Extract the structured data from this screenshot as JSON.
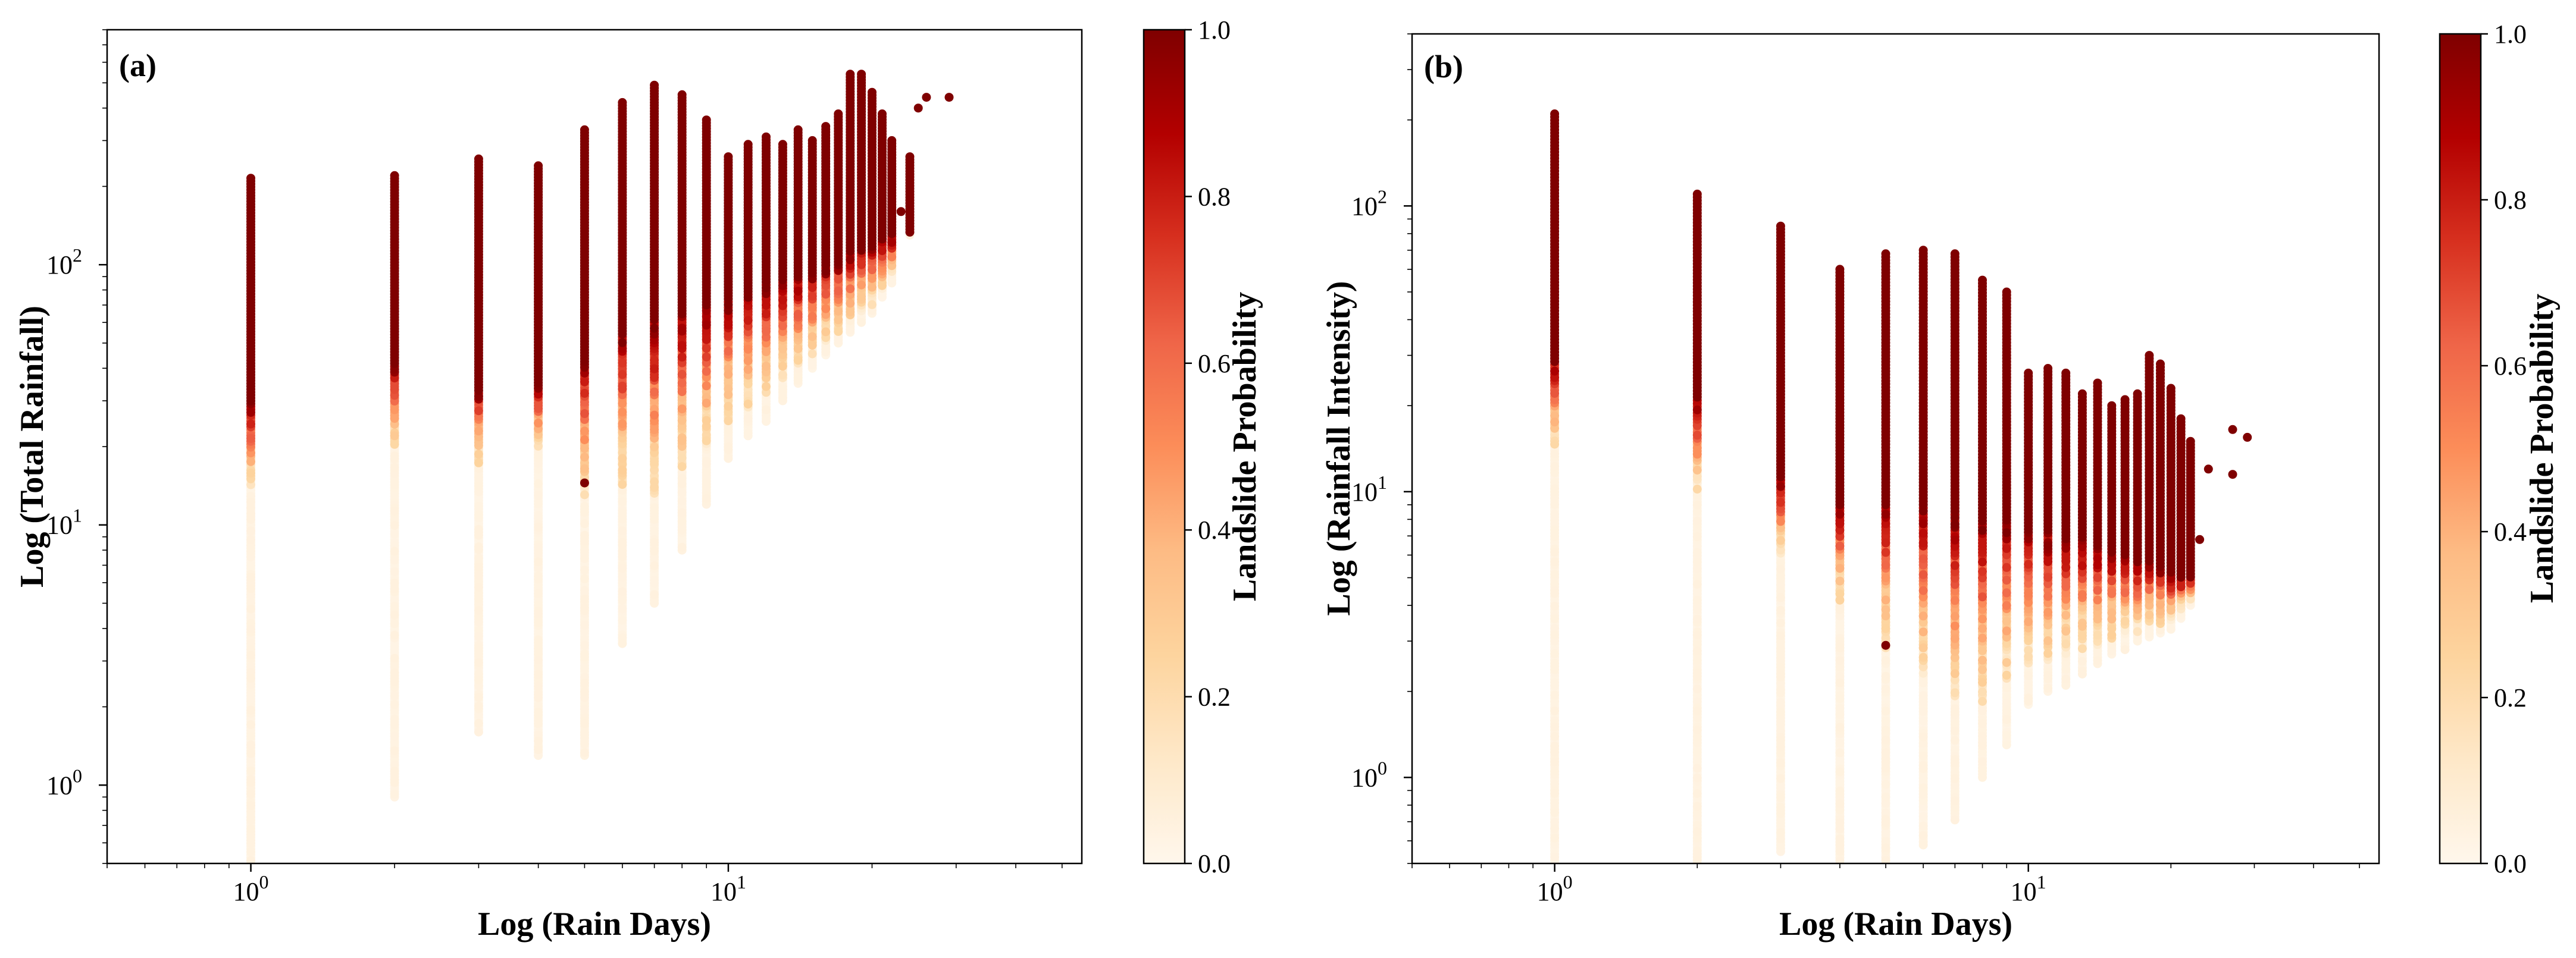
{
  "chart_data": [
    {
      "panel_label": "(a)",
      "type": "scatter",
      "xscale": "log",
      "yscale": "log",
      "xlabel": "Log (Rain Days)",
      "ylabel": "Log (Total Rainfall)",
      "xlim": [
        0.5,
        55
      ],
      "ylim": [
        0.5,
        800
      ],
      "x_ticks": [
        {
          "value": 1,
          "base": "10",
          "exp": "0"
        },
        {
          "value": 10,
          "base": "10",
          "exp": "1"
        }
      ],
      "y_ticks": [
        {
          "value": 1,
          "base": "10",
          "exp": "0"
        },
        {
          "value": 10,
          "base": "10",
          "exp": "1"
        },
        {
          "value": 100,
          "base": "10",
          "exp": "2"
        }
      ],
      "colorbar": {
        "label": "Landslide Probability",
        "range": [
          0.0,
          1.0
        ],
        "ticks": [
          "0.0",
          "0.2",
          "0.4",
          "0.6",
          "0.8",
          "1.0"
        ],
        "colormap": "OrRd"
      },
      "columns": [
        {
          "x": 1,
          "y_min": 0.5,
          "y_max": 215,
          "p_start": 14,
          "p_high": 30
        },
        {
          "x": 2,
          "y_min": 0.9,
          "y_max": 220,
          "p_start": 20,
          "p_high": 42
        },
        {
          "x": 3,
          "y_min": 1.6,
          "y_max": 255,
          "p_start": 17,
          "p_high": 33
        },
        {
          "x": 4,
          "y_min": 1.3,
          "y_max": 240,
          "p_start": 20,
          "p_high": 35
        },
        {
          "x": 5,
          "y_min": 1.3,
          "y_max": 330,
          "p_start": 13,
          "p_high": 45
        },
        {
          "x": 6,
          "y_min": 3.5,
          "y_max": 420,
          "p_start": 14,
          "p_high": 55
        },
        {
          "x": 7,
          "y_min": 5,
          "y_max": 490,
          "p_start": 13,
          "p_high": 60
        },
        {
          "x": 8,
          "y_min": 8,
          "y_max": 450,
          "p_start": 16,
          "p_high": 65
        },
        {
          "x": 9,
          "y_min": 12,
          "y_max": 360,
          "p_start": 20,
          "p_high": 70
        },
        {
          "x": 10,
          "y_min": 18,
          "y_max": 260,
          "p_start": 25,
          "p_high": 75
        },
        {
          "x": 11,
          "y_min": 22,
          "y_max": 290,
          "p_start": 28,
          "p_high": 80
        },
        {
          "x": 12,
          "y_min": 25,
          "y_max": 310,
          "p_start": 32,
          "p_high": 85
        },
        {
          "x": 13,
          "y_min": 30,
          "y_max": 290,
          "p_start": 36,
          "p_high": 88
        },
        {
          "x": 14,
          "y_min": 35,
          "y_max": 330,
          "p_start": 40,
          "p_high": 90
        },
        {
          "x": 15,
          "y_min": 40,
          "y_max": 300,
          "p_start": 45,
          "p_high": 95
        },
        {
          "x": 16,
          "y_min": 45,
          "y_max": 340,
          "p_start": 50,
          "p_high": 100
        },
        {
          "x": 17,
          "y_min": 50,
          "y_max": 380,
          "p_start": 55,
          "p_high": 105
        },
        {
          "x": 18,
          "y_min": 55,
          "y_max": 540,
          "p_start": 60,
          "p_high": 110
        },
        {
          "x": 19,
          "y_min": 60,
          "y_max": 540,
          "p_start": 65,
          "p_high": 115
        },
        {
          "x": 20,
          "y_min": 65,
          "y_max": 460,
          "p_start": 70,
          "p_high": 120
        },
        {
          "x": 21,
          "y_min": 75,
          "y_max": 380,
          "p_start": 80,
          "p_high": 125
        },
        {
          "x": 22,
          "y_min": 85,
          "y_max": 300,
          "p_start": 90,
          "p_high": 130
        },
        {
          "x": 24,
          "y_min": 130,
          "y_max": 260,
          "p_start": 130,
          "p_high": 130
        }
      ],
      "extra_points": [
        {
          "x": 5,
          "y": 14.5,
          "p": 1.0
        },
        {
          "x": 26,
          "y": 440,
          "p": 1.0
        },
        {
          "x": 29,
          "y": 440,
          "p": 1.0
        },
        {
          "x": 25,
          "y": 400,
          "p": 1.0
        },
        {
          "x": 23,
          "y": 160,
          "p": 1.0
        }
      ]
    },
    {
      "panel_label": "(b)",
      "type": "scatter",
      "xscale": "log",
      "yscale": "log",
      "xlabel": "Log (Rain Days)",
      "ylabel": "Log (Rainfall Intensity)",
      "xlim": [
        0.5,
        55
      ],
      "ylim": [
        0.5,
        400
      ],
      "x_ticks": [
        {
          "value": 1,
          "base": "10",
          "exp": "0"
        },
        {
          "value": 10,
          "base": "10",
          "exp": "1"
        }
      ],
      "y_ticks": [
        {
          "value": 1,
          "base": "10",
          "exp": "0"
        },
        {
          "value": 10,
          "base": "10",
          "exp": "1"
        },
        {
          "value": 100,
          "base": "10",
          "exp": "2"
        }
      ],
      "colorbar": {
        "label": "Landslide Probability",
        "range": [
          0.0,
          1.0
        ],
        "ticks": [
          "0.0",
          "0.2",
          "0.4",
          "0.6",
          "0.8",
          "1.0"
        ],
        "colormap": "OrRd"
      },
      "columns": [
        {
          "x": 1,
          "y_min": 0.5,
          "y_max": 210,
          "p_start": 14,
          "p_high": 30
        },
        {
          "x": 2,
          "y_min": 0.5,
          "y_max": 110,
          "p_start": 10,
          "p_high": 21
        },
        {
          "x": 3,
          "y_min": 0.55,
          "y_max": 85,
          "p_start": 6,
          "p_high": 11
        },
        {
          "x": 4,
          "y_min": 0.33,
          "y_max": 60,
          "p_start": 4,
          "p_high": 9
        },
        {
          "x": 5,
          "y_min": 0.27,
          "y_max": 68,
          "p_start": 2.8,
          "p_high": 9
        },
        {
          "x": 6,
          "y_min": 0.58,
          "y_max": 70,
          "p_start": 2.3,
          "p_high": 9
        },
        {
          "x": 7,
          "y_min": 0.71,
          "y_max": 68,
          "p_start": 1.9,
          "p_high": 8.5
        },
        {
          "x": 8,
          "y_min": 1.0,
          "y_max": 55,
          "p_start": 1.8,
          "p_high": 8
        },
        {
          "x": 9,
          "y_min": 1.3,
          "y_max": 50,
          "p_start": 2.2,
          "p_high": 7.8
        },
        {
          "x": 10,
          "y_min": 1.8,
          "y_max": 26,
          "p_start": 2.5,
          "p_high": 7.5
        },
        {
          "x": 11,
          "y_min": 2.0,
          "y_max": 27,
          "p_start": 2.5,
          "p_high": 7.3
        },
        {
          "x": 12,
          "y_min": 2.1,
          "y_max": 26,
          "p_start": 2.7,
          "p_high": 7
        },
        {
          "x": 13,
          "y_min": 2.3,
          "y_max": 22,
          "p_start": 2.8,
          "p_high": 6.8
        },
        {
          "x": 14,
          "y_min": 2.5,
          "y_max": 24,
          "p_start": 2.9,
          "p_high": 6.5
        },
        {
          "x": 15,
          "y_min": 2.7,
          "y_max": 20,
          "p_start": 3.0,
          "p_high": 6.3
        },
        {
          "x": 16,
          "y_min": 2.8,
          "y_max": 21,
          "p_start": 3.2,
          "p_high": 6
        },
        {
          "x": 17,
          "y_min": 3.0,
          "y_max": 22,
          "p_start": 3.2,
          "p_high": 5.8
        },
        {
          "x": 18,
          "y_min": 3.1,
          "y_max": 30,
          "p_start": 3.3,
          "p_high": 5.8
        },
        {
          "x": 19,
          "y_min": 3.2,
          "y_max": 28,
          "p_start": 3.4,
          "p_high": 5.5
        },
        {
          "x": 20,
          "y_min": 3.3,
          "y_max": 23,
          "p_start": 3.5,
          "p_high": 5.2
        },
        {
          "x": 21,
          "y_min": 3.6,
          "y_max": 18,
          "p_start": 3.8,
          "p_high": 5.0
        },
        {
          "x": 22,
          "y_min": 4.0,
          "y_max": 15,
          "p_start": 4.2,
          "p_high": 5.0
        }
      ],
      "extra_points": [
        {
          "x": 5,
          "y": 2.9,
          "p": 1.0
        },
        {
          "x": 27,
          "y": 16.5,
          "p": 1.0
        },
        {
          "x": 29,
          "y": 15.5,
          "p": 1.0
        },
        {
          "x": 24,
          "y": 12,
          "p": 1.0
        },
        {
          "x": 27,
          "y": 11.5,
          "p": 1.0
        },
        {
          "x": 23,
          "y": 6.8,
          "p": 1.0
        }
      ]
    }
  ]
}
